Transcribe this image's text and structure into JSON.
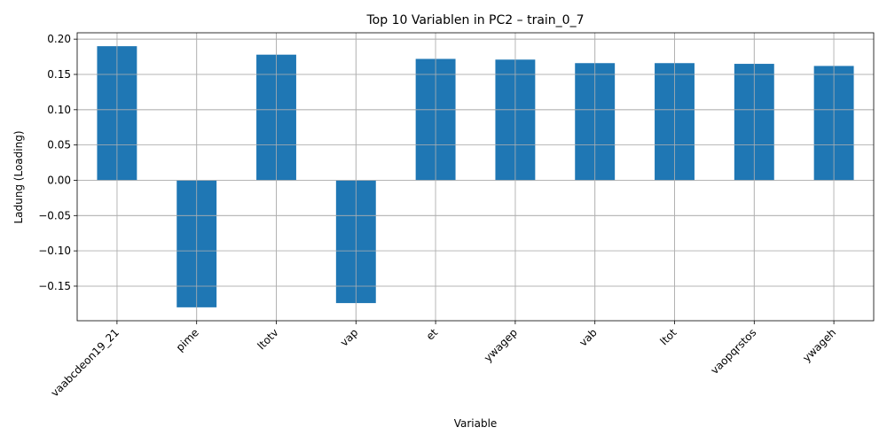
{
  "chart_data": {
    "type": "bar",
    "title": "Top 10 Variablen in PC2 – train_0_7",
    "xlabel": "Variable",
    "ylabel": "Ladung (Loading)",
    "categories": [
      "vaabcdeon19_21",
      "pime",
      "ltotv",
      "vap",
      "et",
      "ywagep",
      "vab",
      "ltot",
      "vaopqrstos",
      "ywageh"
    ],
    "values": [
      0.19,
      -0.18,
      0.178,
      -0.174,
      0.172,
      0.171,
      0.166,
      0.166,
      0.165,
      0.162
    ],
    "ylim": [
      -0.199,
      0.209
    ],
    "yticks": [
      -0.15,
      -0.1,
      -0.05,
      0.0,
      0.05,
      0.1,
      0.15,
      0.2
    ],
    "ytick_labels": [
      "−0.15",
      "−0.10",
      "−0.05",
      "0.00",
      "0.05",
      "0.10",
      "0.15",
      "0.20"
    ],
    "grid": true,
    "bar_color": "#1f77b4"
  }
}
